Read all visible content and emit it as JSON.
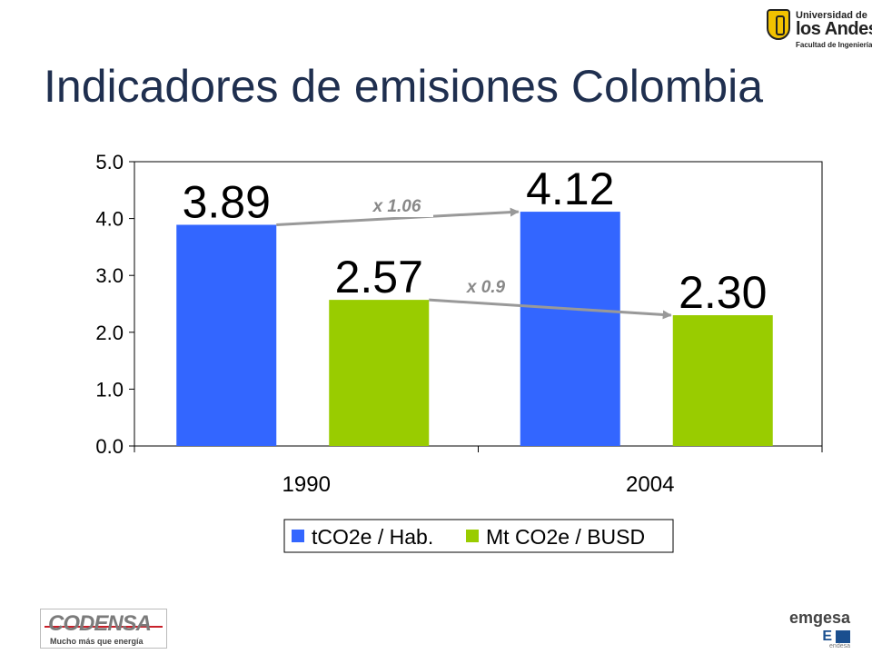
{
  "slide": {
    "title": "Indicadores de emisiones Colombia",
    "logos": {
      "top_right": {
        "line1": "Universidad de",
        "line2": "los Andes",
        "line3": "Facultad de Ingeniería"
      },
      "bottom_left": {
        "name": "CODENSA",
        "tagline": "Mucho más que energía"
      },
      "bottom_right": {
        "name": "emgesa",
        "mark": "E",
        "sub": "endesa"
      }
    }
  },
  "colors": {
    "series1": "#3366ff",
    "series2": "#99cc00",
    "arrow": "#999999",
    "annotation": "#888888"
  },
  "chart_data": {
    "type": "bar",
    "categories": [
      "1990",
      "2004"
    ],
    "series": [
      {
        "name": "tCO2e / Hab.",
        "values": [
          3.89,
          4.12
        ]
      },
      {
        "name": "Mt CO2e / BUSD",
        "values": [
          2.57,
          2.3
        ]
      }
    ],
    "data_labels": [
      [
        "3.89",
        "4.12"
      ],
      [
        "2.57",
        "2.30"
      ]
    ],
    "ylim": [
      0,
      5
    ],
    "yticks": [
      "0.0",
      "1.0",
      "2.0",
      "3.0",
      "4.0",
      "5.0"
    ],
    "legend": {
      "position": "bottom"
    },
    "grid": false,
    "annotations": [
      {
        "text": "x 1.06",
        "series": 0
      },
      {
        "text": "x 0.9",
        "series": 1
      }
    ]
  }
}
